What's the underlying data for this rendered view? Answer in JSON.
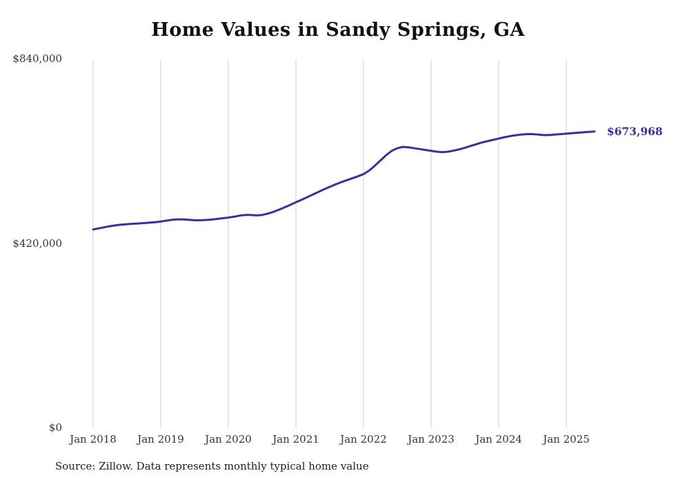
{
  "chart": {
    "title": "Home Values in Sandy Springs, GA",
    "end_label": "$673,968",
    "source": "Source: Zillow. Data represents monthly typical home value",
    "line_color": "#3230a8",
    "grid_color": "#cccccc",
    "axis_text_color": "#333333"
  },
  "chart_data": {
    "type": "line",
    "title": "Home Values in Sandy Springs, GA",
    "xlabel": "",
    "ylabel": "",
    "ylim": [
      0,
      840000
    ],
    "y_ticks": [
      0,
      420000,
      840000
    ],
    "y_tick_labels": [
      "$0",
      "$420,000",
      "$840,000"
    ],
    "x_tick_labels": [
      "Jan 2018",
      "Jan 2019",
      "Jan 2020",
      "Jan 2021",
      "Jan 2022",
      "Jan 2023",
      "Jan 2024",
      "Jan 2025"
    ],
    "x_start": "Jan 2018",
    "x_end": "Jun 2025",
    "frequency": "monthly",
    "grid": "vertical-only",
    "legend": "none",
    "end_value": 673968,
    "annotations": [
      {
        "text": "$673,968",
        "position": "end-of-line"
      }
    ],
    "source": "Source: Zillow. Data represents monthly typical home value",
    "series": [
      {
        "name": "Typical home value",
        "values": [
          451000,
          453500,
          456000,
          458500,
          460500,
          462000,
          463000,
          464000,
          464500,
          465500,
          466500,
          467500,
          469000,
          471000,
          473000,
          474000,
          474000,
          473000,
          472000,
          472000,
          472500,
          473500,
          475000,
          476500,
          478000,
          480000,
          482500,
          484000,
          484000,
          483000,
          484000,
          487000,
          491000,
          496000,
          501500,
          507000,
          513000,
          518500,
          524500,
          530500,
          536500,
          542500,
          548000,
          553500,
          558500,
          563000,
          567500,
          572000,
          577000,
          585000,
          596000,
          608000,
          620000,
          630000,
          636000,
          639000,
          638000,
          636000,
          634000,
          632000,
          630000,
          628000,
          627000,
          628000,
          630500,
          633500,
          637000,
          641000,
          645000,
          649000,
          652000,
          655000,
          658000,
          661000,
          663500,
          665500,
          667000,
          668000,
          668000,
          667000,
          666000,
          666000,
          667000,
          668000,
          669000,
          670200,
          671200,
          672200,
          673200,
          673968
        ]
      }
    ]
  }
}
